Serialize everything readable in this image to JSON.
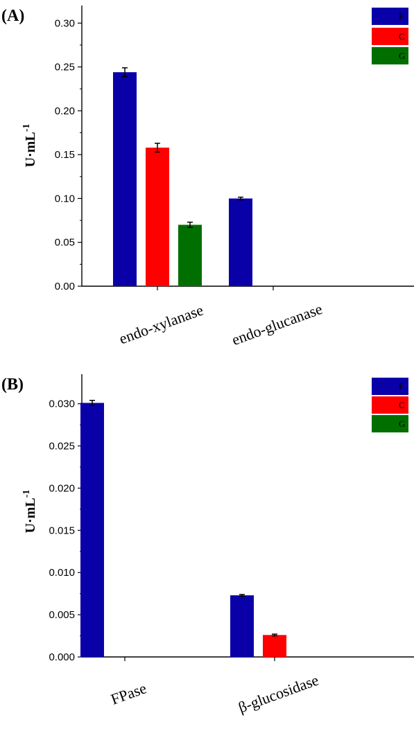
{
  "chart_data": [
    {
      "panel_label": "(A)",
      "type": "bar",
      "categories": [
        "endo-xylanase",
        "endo-glucanase"
      ],
      "series": [
        {
          "name": "F",
          "color": "#0a00a8",
          "values": [
            0.244,
            0.1
          ],
          "errors": [
            0.005,
            0.0015
          ]
        },
        {
          "name": "C",
          "color": "#ff0000",
          "values": [
            0.158,
            null
          ],
          "errors": [
            0.005,
            null
          ]
        },
        {
          "name": "G",
          "color": "#006f00",
          "values": [
            0.07,
            null
          ],
          "errors": [
            0.003,
            null
          ]
        }
      ],
      "ylabel": "U·mL",
      "ylabel_exp": "-1",
      "ylim": [
        0,
        0.32
      ],
      "yticks": [
        "0.00",
        "0.05",
        "0.10",
        "0.15",
        "0.20",
        "0.25",
        "0.30"
      ],
      "ytick_values": [
        0,
        0.05,
        0.1,
        0.15,
        0.2,
        0.25,
        0.3
      ],
      "legend_position": "top-right",
      "grid": false
    },
    {
      "panel_label": "(B)",
      "type": "bar",
      "categories": [
        "FPase",
        "β-glucosidase"
      ],
      "series": [
        {
          "name": "F",
          "color": "#0a00a8",
          "values": [
            0.0301,
            0.0073
          ],
          "errors": [
            0.0003,
            0.0001
          ]
        },
        {
          "name": "C",
          "color": "#ff0000",
          "values": [
            null,
            0.0026
          ],
          "errors": [
            null,
            0.0001
          ]
        },
        {
          "name": "G",
          "color": "#006f00",
          "values": [
            null,
            null
          ],
          "errors": [
            null,
            null
          ]
        }
      ],
      "ylabel": "U·mL",
      "ylabel_exp": "-1",
      "ylim": [
        0,
        0.0335
      ],
      "yticks": [
        "0.000",
        "0.005",
        "0.010",
        "0.015",
        "0.020",
        "0.025",
        "0.030"
      ],
      "ytick_values": [
        0,
        0.005,
        0.01,
        0.015,
        0.02,
        0.025,
        0.03
      ],
      "legend_position": "top-right",
      "grid": false
    }
  ]
}
